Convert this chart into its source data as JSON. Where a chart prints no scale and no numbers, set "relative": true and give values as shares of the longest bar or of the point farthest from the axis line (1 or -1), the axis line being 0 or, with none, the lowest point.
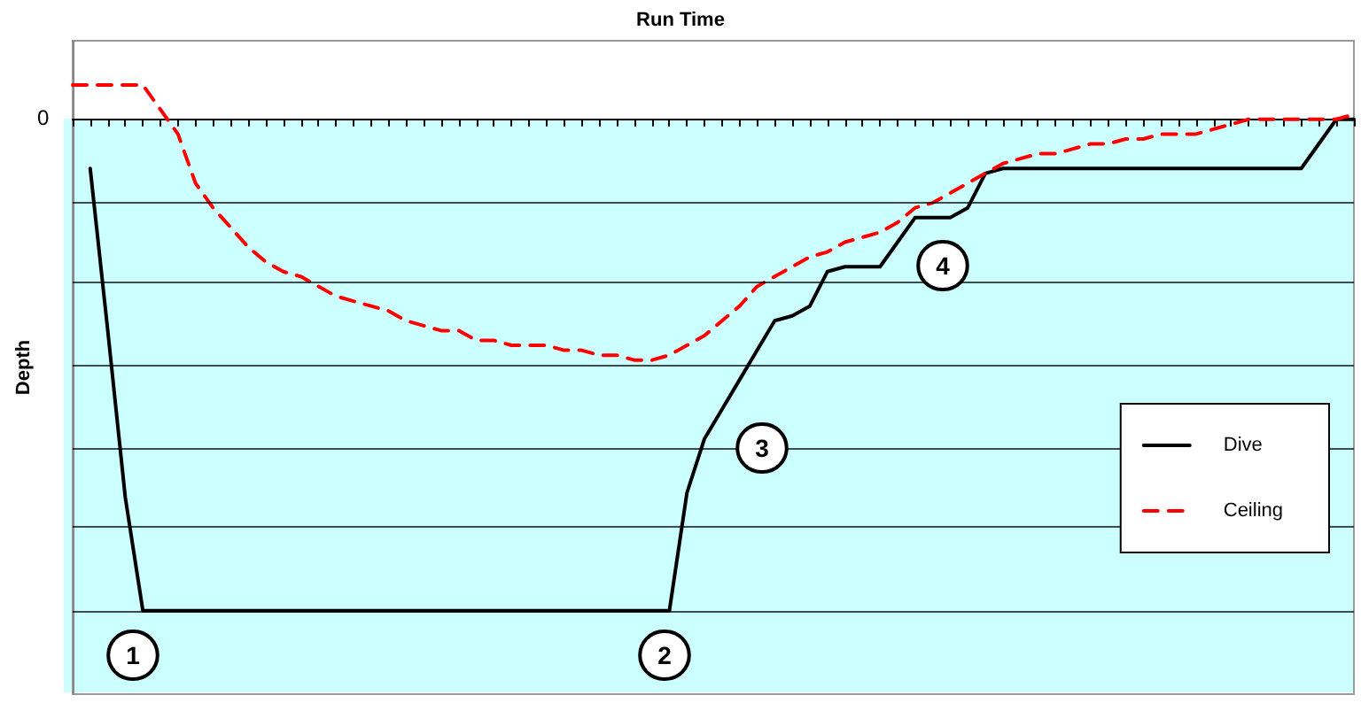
{
  "chart_data": {
    "type": "line",
    "title": "Run Time",
    "ylabel": "Depth",
    "relative": true,
    "grid": "y",
    "legend": "right",
    "categories": [
      null,
      null,
      null,
      null,
      null,
      null,
      null,
      null,
      null,
      null,
      null,
      null,
      null,
      null,
      null,
      null,
      null,
      null,
      null,
      null,
      null,
      null,
      null,
      null,
      null,
      null,
      null,
      null,
      null,
      null,
      null,
      null,
      null,
      null,
      null,
      null,
      null,
      null,
      null,
      null,
      null,
      null,
      null,
      null,
      null,
      null,
      null,
      null,
      null,
      null,
      null,
      null,
      null,
      null,
      null,
      null,
      null,
      null,
      null,
      null,
      null,
      null,
      null,
      null,
      null,
      null,
      null,
      null,
      null,
      null,
      null,
      null,
      null,
      null
    ],
    "series": [
      {
        "name": "Dive",
        "color": "#000000",
        "line_style": "solid",
        "values": [
          null,
          -0.1,
          -0.43,
          -0.77,
          -1,
          -1,
          -1,
          -1,
          -1,
          -1,
          -1,
          -1,
          -1,
          -1,
          -1,
          -1,
          -1,
          -1,
          -1,
          -1,
          -1,
          -1,
          -1,
          -1,
          -1,
          -1,
          -1,
          -1,
          -1,
          -1,
          -1,
          -1,
          -1,
          -1,
          -1,
          -0.76,
          -0.65,
          -0.59,
          -0.53,
          -0.47,
          -0.41,
          -0.4,
          -0.38,
          -0.31,
          -0.3,
          -0.3,
          -0.3,
          -0.25,
          -0.2,
          -0.2,
          -0.2,
          -0.18,
          -0.11,
          -0.1,
          -0.1,
          -0.1,
          -0.1,
          -0.1,
          -0.1,
          -0.1,
          -0.1,
          -0.1,
          -0.1,
          -0.1,
          -0.1,
          -0.1,
          -0.1,
          -0.1,
          -0.1,
          -0.1,
          -0.1,
          -0.05,
          0,
          0
        ]
      },
      {
        "name": "Ceiling",
        "color": "#ff0000",
        "line_style": "dashed",
        "values": [
          0.07,
          0.07,
          0.07,
          0.07,
          0.07,
          0.02,
          -0.03,
          -0.13,
          -0.18,
          -0.22,
          -0.26,
          -0.29,
          -0.31,
          -0.32,
          -0.34,
          -0.36,
          -0.37,
          -0.38,
          -0.39,
          -0.41,
          -0.42,
          -0.43,
          -0.43,
          -0.45,
          -0.45,
          -0.46,
          -0.46,
          -0.46,
          -0.47,
          -0.47,
          -0.48,
          -0.48,
          -0.49,
          -0.49,
          -0.48,
          -0.46,
          -0.44,
          -0.41,
          -0.38,
          -0.34,
          -0.32,
          -0.3,
          -0.28,
          -0.27,
          -0.25,
          -0.24,
          -0.23,
          -0.21,
          -0.18,
          -0.17,
          -0.15,
          -0.13,
          -0.11,
          -0.09,
          -0.08,
          -0.07,
          -0.07,
          -0.06,
          -0.05,
          -0.05,
          -0.04,
          -0.04,
          -0.03,
          -0.03,
          -0.03,
          -0.02,
          -0.01,
          0,
          0,
          0,
          0,
          0,
          0,
          0.01
        ]
      }
    ],
    "annotations": [
      "0",
      "1",
      "2",
      "3",
      "4"
    ]
  }
}
